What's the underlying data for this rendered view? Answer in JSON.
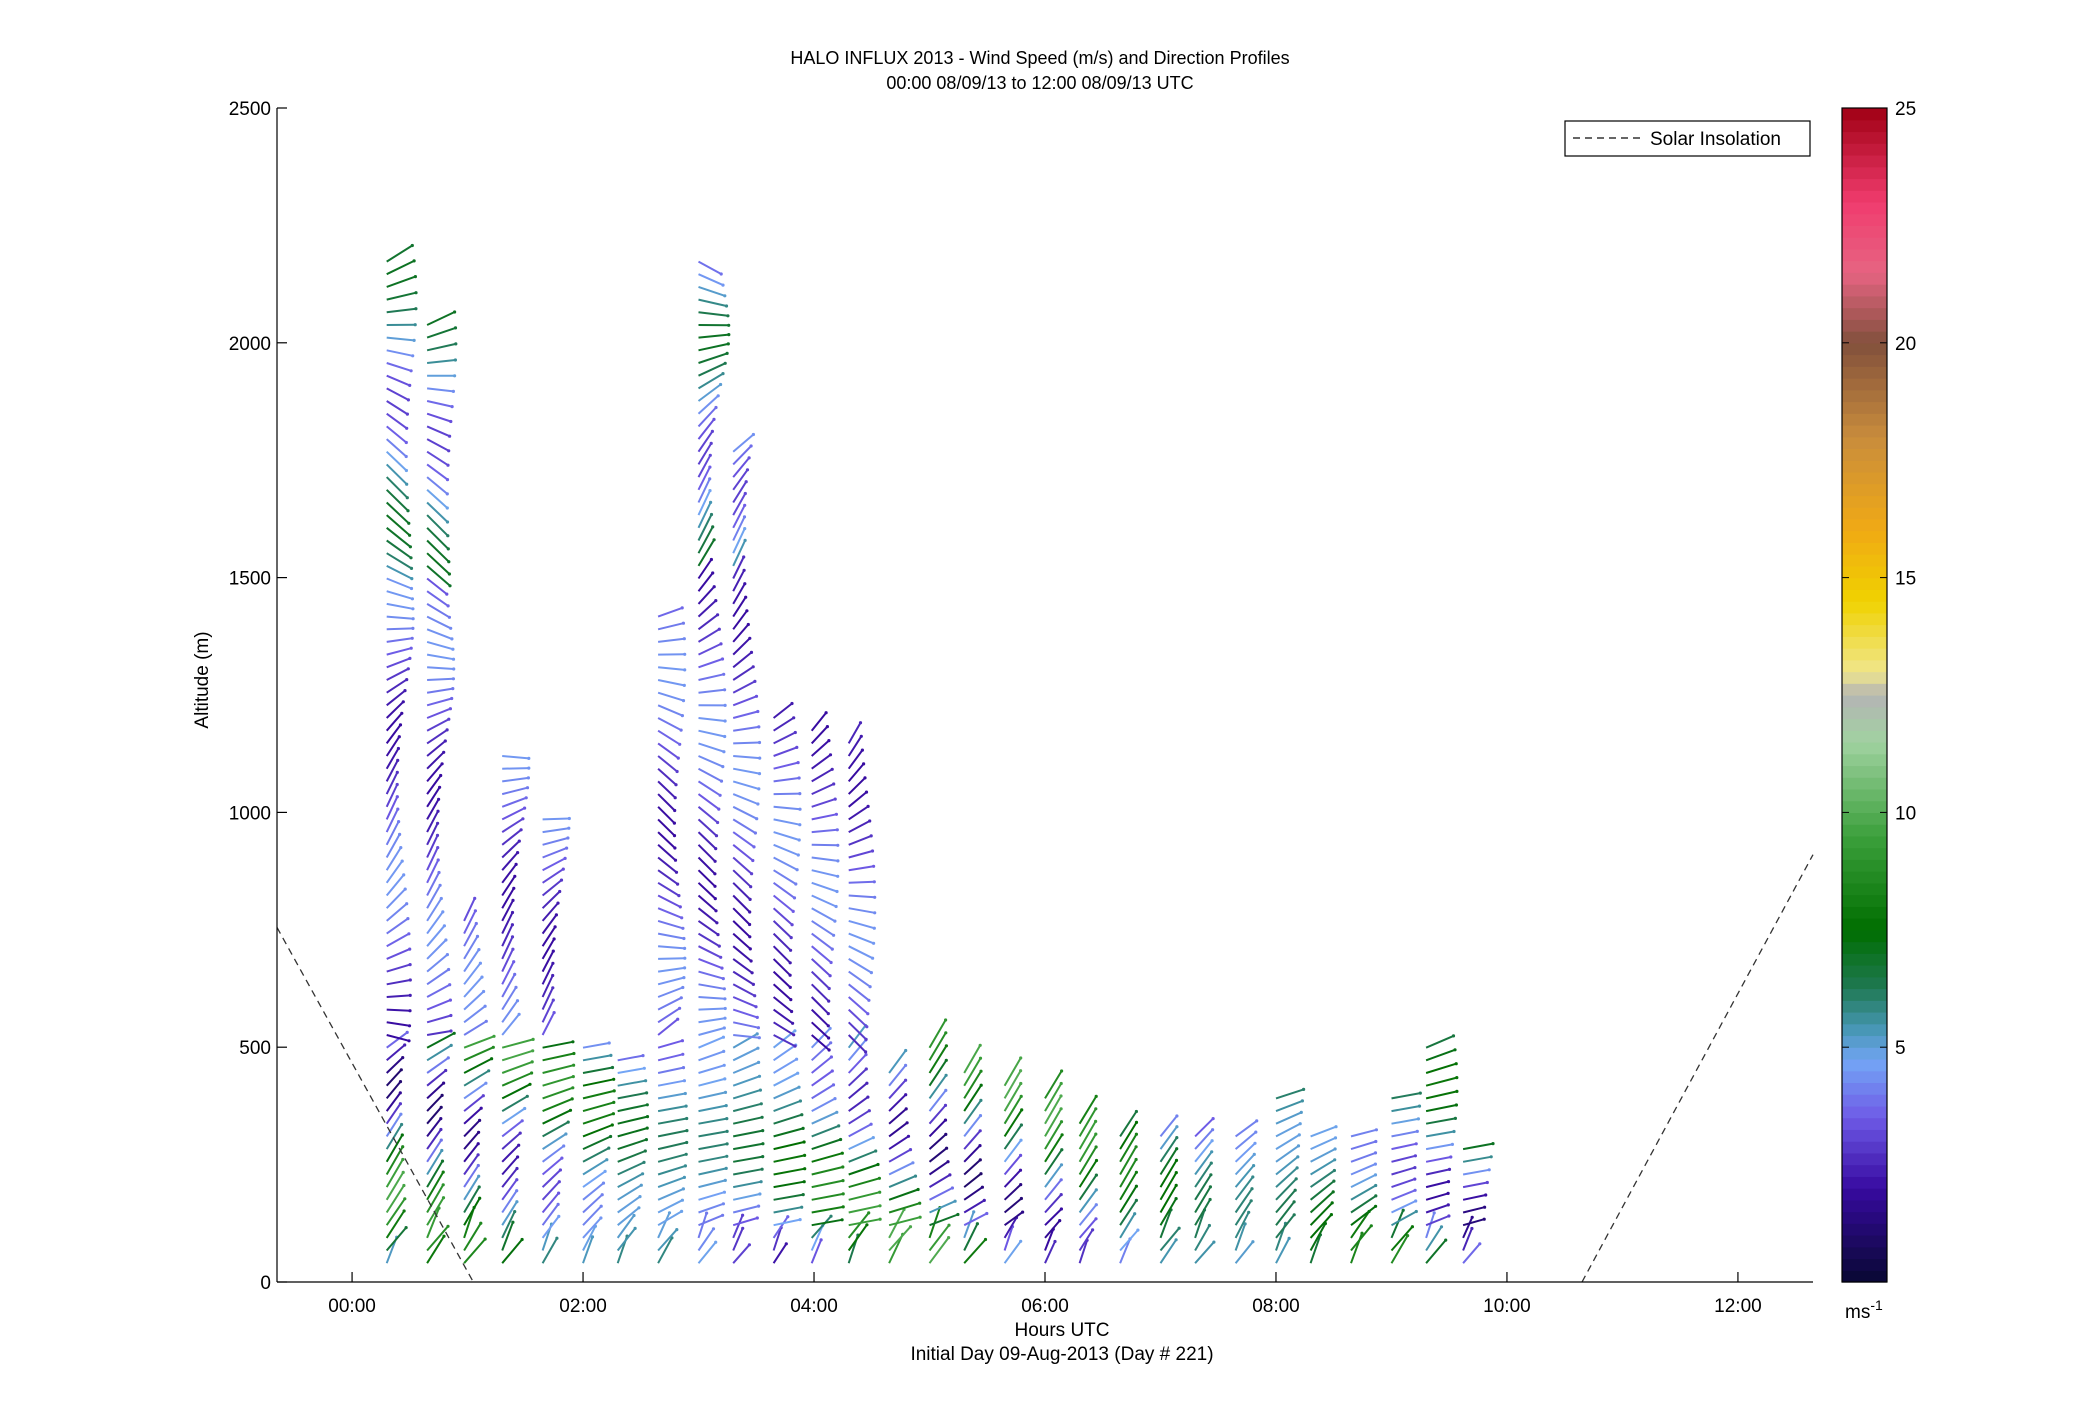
{
  "chart_data": {
    "type": "wind-barb-profile",
    "title": "HALO INFLUX 2013 - Wind Speed (m/s) and Direction Profiles",
    "subtitle": "00:00 08/09/13 to 12:00 08/09/13  UTC",
    "xlabel": "Hours UTC",
    "xlabel_sub": "Initial Day 09-Aug-2013 (Day # 221)",
    "ylabel": "Altitude (m)",
    "xlim": [
      -0.65,
      12.65
    ],
    "ylim": [
      0,
      2500
    ],
    "x_ticks": [
      {
        "value": 0,
        "label": "00:00"
      },
      {
        "value": 2,
        "label": "02:00"
      },
      {
        "value": 4,
        "label": "04:00"
      },
      {
        "value": 6,
        "label": "06:00"
      },
      {
        "value": 8,
        "label": "08:00"
      },
      {
        "value": 10,
        "label": "10:00"
      },
      {
        "value": 12,
        "label": "12:00"
      }
    ],
    "y_ticks": [
      0,
      500,
      1000,
      1500,
      2000,
      2500
    ],
    "legend": {
      "entries": [
        "Solar Insolation"
      ],
      "placement": "top-right"
    },
    "colorbar": {
      "min": 0,
      "max": 25,
      "ticks": [
        5,
        10,
        15,
        20,
        25
      ],
      "unit": "ms",
      "unit_exp": "-1"
    },
    "solar_insolation": [
      {
        "x": [
          -0.65,
          1.05
        ],
        "y": [
          755,
          0
        ]
      },
      {
        "x": [
          10.65,
          12.65
        ],
        "y": [
          0,
          910
        ]
      }
    ],
    "profile_times": [
      0.3,
      0.65,
      0.97,
      1.3,
      1.65,
      2.0,
      2.3,
      2.65,
      3.0,
      3.3,
      3.65,
      3.98,
      4.3,
      4.65,
      5.0,
      5.3,
      5.65,
      6.0,
      6.3,
      6.65,
      7.0,
      7.3,
      7.65,
      8.0,
      8.3,
      8.65,
      9.0,
      9.3,
      9.62
    ],
    "profile_tops": [
      2180,
      2040,
      780,
      1130,
      1000,
      500,
      480,
      1430,
      2180,
      1780,
      1210,
      1200,
      1150,
      470,
      500,
      460,
      420,
      410,
      360,
      330,
      320,
      330,
      330,
      400,
      320,
      330,
      400,
      500,
      300
    ]
  }
}
